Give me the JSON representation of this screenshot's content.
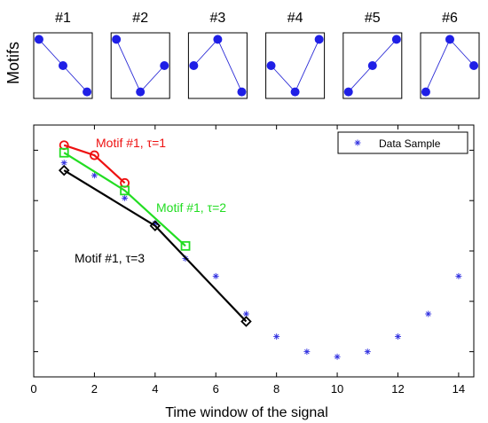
{
  "chart_data": [
    {
      "type": "motif-panels",
      "ylabel": "Motifs",
      "motifs": [
        {
          "label": "#1",
          "ranks": [
            3,
            2,
            1
          ]
        },
        {
          "label": "#2",
          "ranks": [
            3,
            1,
            2
          ]
        },
        {
          "label": "#3",
          "ranks": [
            2,
            3,
            1
          ]
        },
        {
          "label": "#4",
          "ranks": [
            2,
            1,
            3
          ]
        },
        {
          "label": "#5",
          "ranks": [
            1,
            2,
            3
          ]
        },
        {
          "label": "#6",
          "ranks": [
            1,
            3,
            2
          ]
        }
      ],
      "colors": {
        "line": "#2b2bd6",
        "marker": "#1f1fe6"
      }
    },
    {
      "type": "scatter",
      "xlabel": "Time window of the signal",
      "ylabel": "",
      "xlim": [
        0,
        14.5
      ],
      "ylim": [
        0,
        1.0
      ],
      "xticks": [
        0,
        2,
        4,
        6,
        8,
        10,
        12,
        14
      ],
      "yticks": [
        0.1,
        0.3,
        0.5,
        0.7,
        0.9
      ],
      "grid": false,
      "legend": {
        "position": "top-right",
        "entries": [
          "Data Sample"
        ]
      },
      "series": [
        {
          "name": "Data Sample",
          "marker": "asterisk",
          "color": "#2f2fe0",
          "x": [
            1,
            2,
            3,
            4,
            5,
            6,
            7,
            8,
            9,
            10,
            11,
            12,
            13,
            14
          ],
          "y": [
            0.85,
            0.8,
            0.71,
            0.61,
            0.47,
            0.4,
            0.25,
            0.16,
            0.1,
            0.08,
            0.1,
            0.16,
            0.25,
            0.4
          ]
        }
      ],
      "motif_lines": [
        {
          "label": "Motif #1,  τ=1",
          "color": "#ee1111",
          "marker": "circle",
          "x": [
            1,
            2,
            3
          ],
          "y": [
            0.92,
            0.88,
            0.77
          ]
        },
        {
          "label": "Motif #1,  τ=2",
          "color": "#22dd22",
          "marker": "square",
          "x": [
            1,
            3,
            5
          ],
          "y": [
            0.89,
            0.74,
            0.52
          ]
        },
        {
          "label": "Motif #1,  τ=3",
          "color": "#000000",
          "marker": "diamond",
          "x": [
            1,
            4,
            7
          ],
          "y": [
            0.82,
            0.6,
            0.22
          ]
        }
      ]
    }
  ]
}
